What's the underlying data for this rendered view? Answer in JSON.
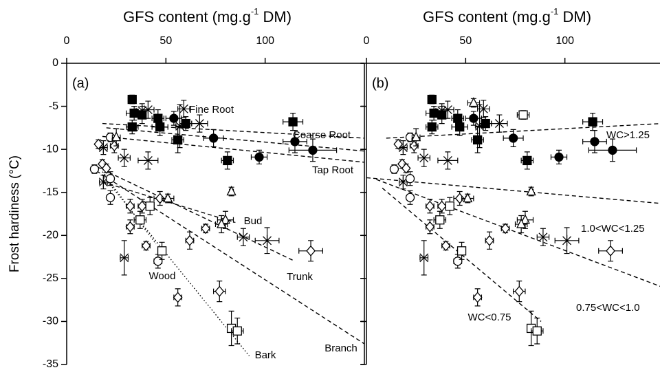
{
  "chart_data": [
    {
      "type": "scatter",
      "panel_label": "(a)",
      "xlabel": {
        "text": "GFS content (mg.g",
        "sup": "-1",
        "tail": " DM)"
      },
      "ylabel": "Frost hardiness (°C)",
      "xlim": [
        0,
        150
      ],
      "xticks": [
        0,
        50,
        100
      ],
      "ylim": [
        -35,
        0
      ],
      "yticks": [
        0,
        -5,
        -10,
        -15,
        -20,
        -25,
        -30,
        -35
      ],
      "color": "#000000",
      "series": [
        {
          "marker": "square",
          "filled": true,
          "x": [
            33,
            34,
            33,
            46,
            47,
            56,
            60,
            114,
            81,
            38
          ],
          "y": [
            -4.2,
            -5.8,
            -7.4,
            -6.4,
            -7.4,
            -8.9,
            -7.0,
            -6.8,
            -11.3,
            -6.0
          ],
          "xerr": [
            2,
            4,
            3,
            3,
            4,
            3,
            3,
            5,
            3,
            2
          ],
          "yerr": [
            0.5,
            0.8,
            0.8,
            1,
            1,
            1.5,
            0.8,
            1,
            1,
            1
          ]
        },
        {
          "marker": "circle",
          "filled": true,
          "x": [
            54,
            74,
            115,
            97,
            124
          ],
          "y": [
            -6.4,
            -8.7,
            -9.1,
            -10.9,
            -10.1
          ],
          "xerr": [
            4,
            5,
            6,
            4,
            12
          ],
          "yerr": [
            0.8,
            1,
            1.3,
            0.8,
            1.3
          ]
        },
        {
          "marker": "cross",
          "filled": false,
          "x": [
            41,
            59,
            67,
            41,
            29,
            57,
            29,
            89
          ],
          "y": [
            -5.4,
            -5.3,
            -7.0,
            -11.3,
            -11.0,
            -7.3,
            -22.6,
            -20.2
          ],
          "xerr": [
            3,
            3,
            4,
            5,
            3,
            2,
            2,
            3
          ],
          "yerr": [
            1,
            1,
            1,
            1,
            1,
            2.5,
            2,
            1
          ]
        },
        {
          "marker": "asterisk",
          "filled": false,
          "x": [
            18.5,
            18.5,
            101,
            38
          ],
          "y": [
            -9.8,
            -13.8,
            -20.6,
            -5.5
          ],
          "xerr": [
            2,
            2,
            6,
            3
          ],
          "yerr": [
            0.8,
            0.8,
            1.5,
            0.8
          ]
        },
        {
          "marker": "circle",
          "filled": false,
          "x": [
            14,
            22,
            22,
            46,
            22
          ],
          "y": [
            -12.3,
            -13.4,
            -15.6,
            -23.0,
            -8.6
          ],
          "xerr": [
            1,
            1,
            1,
            2,
            1
          ],
          "yerr": [
            0.5,
            0.8,
            0.8,
            0.8,
            0.5
          ]
        },
        {
          "marker": "diamond",
          "filled": false,
          "x": [
            18,
            20,
            32,
            32,
            38,
            47,
            40,
            62,
            70,
            123,
            56,
            77,
            24,
            16
          ],
          "y": [
            -11.7,
            -12.2,
            -16.6,
            -19.0,
            -16.6,
            -15.7,
            -21.2,
            -20.6,
            -19.2,
            -21.8,
            -27.2,
            -26.5,
            -9.6,
            -9.4
          ],
          "xerr": [
            1,
            1,
            2,
            2,
            2,
            3,
            2,
            2,
            2,
            6,
            2,
            3,
            2,
            1
          ],
          "yerr": [
            0.5,
            0.5,
            0.8,
            0.8,
            0.8,
            0.8,
            0.5,
            1,
            0.5,
            1.2,
            1,
            1.2,
            0.8,
            0.5
          ]
        },
        {
          "marker": "square",
          "filled": false,
          "x": [
            37,
            42,
            48,
            83,
            86
          ],
          "y": [
            -18.2,
            -16.6,
            -21.8,
            -30.8,
            -31.1
          ],
          "xerr": [
            3,
            2,
            2,
            2,
            3
          ],
          "yerr": [
            1,
            1,
            1,
            2,
            1.5
          ]
        },
        {
          "marker": "triangle",
          "filled": false,
          "x": [
            51,
            83,
            80,
            78,
            25
          ],
          "y": [
            -15.7,
            -14.9,
            -18.2,
            -18.7,
            -8.6
          ],
          "xerr": [
            3,
            1,
            4,
            3,
            2
          ],
          "yerr": [
            0.5,
            0.5,
            1,
            1,
            1
          ]
        }
      ],
      "lines": [
        {
          "label": "Fine Root",
          "style": "dashed",
          "x": [
            18,
            150
          ],
          "y": [
            -7.0,
            -8.7
          ]
        },
        {
          "label": "Coarse Root",
          "style": "dashed",
          "x": [
            20,
            150
          ],
          "y": [
            -7.5,
            -10.2
          ]
        },
        {
          "label": "Tap Root",
          "style": "dashed",
          "x": [
            18,
            150
          ],
          "y": [
            -8.5,
            -11.5
          ]
        },
        {
          "label": "Bud",
          "style": "dashed",
          "x": [
            18,
            85
          ],
          "y": [
            -13.8,
            -18.5
          ]
        },
        {
          "label": "Trunk",
          "style": "dashed",
          "x": [
            15,
            115
          ],
          "y": [
            -12.0,
            -23.0
          ]
        },
        {
          "label": "Wood",
          "style": "dotted",
          "x": [
            18,
            45
          ],
          "y": [
            -12.6,
            -21.0
          ]
        },
        {
          "label": "Bark",
          "style": "dotted",
          "x": [
            18,
            92
          ],
          "y": [
            -13.0,
            -34.0
          ]
        },
        {
          "label": "Branch",
          "style": "dashed",
          "x": [
            15,
            150
          ],
          "y": [
            -12.5,
            -32.6
          ]
        }
      ]
    },
    {
      "type": "scatter",
      "panel_label": "(b)",
      "xlabel": {
        "text": "GFS content (mg.g",
        "sup": "-1",
        "tail": " DM)"
      },
      "xlim": [
        0,
        150
      ],
      "xticks": [
        0,
        50,
        100
      ],
      "ylim": [
        -35,
        0
      ],
      "yticks": [
        0,
        -5,
        -10,
        -15,
        -20,
        -25,
        -30,
        -35
      ],
      "color": "#000000",
      "series": [
        {
          "marker": "square",
          "filled": true,
          "x": [
            33,
            34,
            33,
            46,
            47,
            56,
            60,
            114,
            81,
            38
          ],
          "y": [
            -4.2,
            -5.8,
            -7.4,
            -6.4,
            -7.4,
            -8.9,
            -7.0,
            -6.8,
            -11.3,
            -6.0
          ],
          "xerr": [
            2,
            4,
            3,
            3,
            4,
            3,
            3,
            5,
            3,
            2
          ],
          "yerr": [
            0.5,
            0.8,
            0.8,
            1,
            1,
            1.5,
            0.8,
            1,
            1,
            1
          ]
        },
        {
          "marker": "circle",
          "filled": true,
          "x": [
            54,
            74,
            115,
            97,
            124
          ],
          "y": [
            -6.4,
            -8.7,
            -9.1,
            -10.9,
            -10.1
          ],
          "xerr": [
            4,
            5,
            6,
            4,
            12
          ],
          "yerr": [
            0.8,
            1,
            1.3,
            0.8,
            1.3
          ]
        },
        {
          "marker": "cross",
          "filled": false,
          "x": [
            41,
            59,
            67,
            41,
            29,
            57,
            29,
            89
          ],
          "y": [
            -5.4,
            -5.3,
            -7.0,
            -11.3,
            -11.0,
            -7.3,
            -22.6,
            -20.2
          ],
          "xerr": [
            3,
            3,
            4,
            5,
            3,
            2,
            2,
            3
          ],
          "yerr": [
            1,
            1,
            1,
            1,
            1,
            2.5,
            2,
            1
          ]
        },
        {
          "marker": "asterisk",
          "filled": false,
          "x": [
            18.5,
            18.5,
            101,
            38
          ],
          "y": [
            -9.8,
            -13.8,
            -20.6,
            -5.5
          ],
          "xerr": [
            2,
            2,
            6,
            3
          ],
          "yerr": [
            0.8,
            0.8,
            1.5,
            0.8
          ]
        },
        {
          "marker": "circle",
          "filled": false,
          "x": [
            14,
            22,
            22,
            46,
            22
          ],
          "y": [
            -12.3,
            -13.4,
            -15.6,
            -23.0,
            -8.6
          ],
          "xerr": [
            1,
            1,
            1,
            2,
            1
          ],
          "yerr": [
            0.5,
            0.8,
            0.8,
            0.8,
            0.5
          ]
        },
        {
          "marker": "diamond",
          "filled": false,
          "x": [
            18,
            20,
            32,
            32,
            38,
            47,
            40,
            62,
            70,
            123,
            56,
            77,
            24,
            16
          ],
          "y": [
            -11.7,
            -12.2,
            -16.6,
            -19.0,
            -16.6,
            -15.7,
            -21.2,
            -20.6,
            -19.2,
            -21.8,
            -27.2,
            -26.5,
            -9.6,
            -9.4
          ],
          "xerr": [
            1,
            1,
            2,
            2,
            2,
            3,
            2,
            2,
            2,
            6,
            2,
            3,
            2,
            1
          ],
          "yerr": [
            0.5,
            0.5,
            0.8,
            0.8,
            0.8,
            0.8,
            0.5,
            1,
            0.5,
            1.2,
            1,
            1.2,
            0.8,
            0.5
          ]
        },
        {
          "marker": "square",
          "filled": false,
          "x": [
            37,
            42,
            48,
            83,
            86,
            79
          ],
          "y": [
            -18.2,
            -16.6,
            -21.8,
            -30.8,
            -31.1,
            -6.0
          ],
          "xerr": [
            3,
            2,
            2,
            2,
            3,
            3
          ],
          "yerr": [
            1,
            1,
            1,
            2,
            1.5,
            0.5
          ]
        },
        {
          "marker": "triangle",
          "filled": false,
          "x": [
            51,
            83,
            80,
            78,
            25,
            54
          ],
          "y": [
            -15.7,
            -14.9,
            -18.2,
            -18.7,
            -8.6,
            -4.6
          ],
          "xerr": [
            3,
            1,
            4,
            3,
            2,
            3
          ],
          "yerr": [
            0.5,
            0.5,
            1,
            1,
            1,
            0.5
          ]
        }
      ],
      "lines": [
        {
          "label": "WC>1.25",
          "style": "dashed",
          "x": [
            10,
            149
          ],
          "y": [
            -8.7,
            -7.0
          ]
        },
        {
          "label": "1.0<WC<1.25",
          "style": "dashed",
          "x": [
            0,
            149
          ],
          "y": [
            -13.3,
            -16.3
          ]
        },
        {
          "label": "0.75<WC<1.0",
          "style": "dashed",
          "x": [
            5,
            149
          ],
          "y": [
            -13.5,
            -26.0
          ]
        },
        {
          "label": "WC<0.75",
          "style": "dashed",
          "x": [
            8,
            88
          ],
          "y": [
            -14.5,
            -30.0
          ]
        }
      ]
    }
  ]
}
